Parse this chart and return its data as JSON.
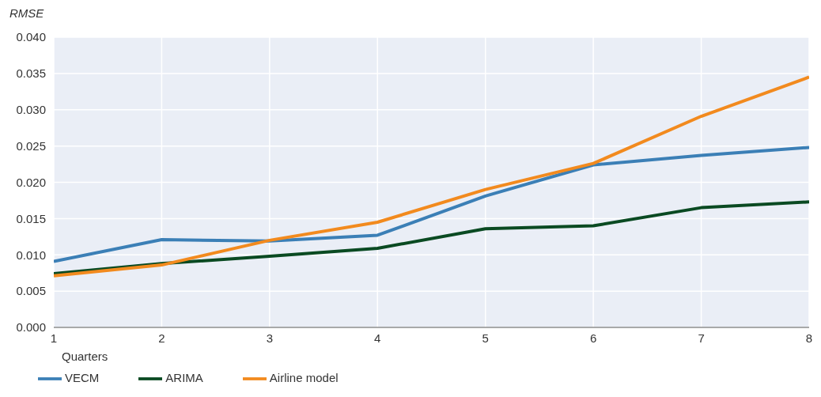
{
  "chart_data": {
    "type": "line",
    "ylabel": "RMSE",
    "xlabel": "Quarters",
    "x": [
      1,
      2,
      3,
      4,
      5,
      6,
      7,
      8
    ],
    "series": [
      {
        "name": "VECM",
        "color": "#3b7fb6",
        "values": [
          0.0091,
          0.0121,
          0.0119,
          0.0127,
          0.0181,
          0.0224,
          0.0237,
          0.0248
        ]
      },
      {
        "name": "ARIMA",
        "color": "#0a4a22",
        "values": [
          0.0074,
          0.0088,
          0.0098,
          0.0109,
          0.0136,
          0.014,
          0.0165,
          0.0173
        ]
      },
      {
        "name": "Airline model",
        "color": "#f28a1e",
        "values": [
          0.0071,
          0.0086,
          0.012,
          0.0145,
          0.019,
          0.0226,
          0.0291,
          0.0345
        ]
      }
    ],
    "xlim": [
      1,
      8
    ],
    "xticks": [
      1,
      2,
      3,
      4,
      5,
      6,
      7,
      8
    ],
    "ylim": [
      0,
      0.04
    ],
    "yticks": [
      {
        "value": 0,
        "label": "0.000"
      },
      {
        "value": 0.005,
        "label": "0.005"
      },
      {
        "value": 0.01,
        "label": "0.010"
      },
      {
        "value": 0.015,
        "label": "0.015"
      },
      {
        "value": 0.02,
        "label": "0.020"
      },
      {
        "value": 0.025,
        "label": "0.025"
      },
      {
        "value": 0.03,
        "label": "0.030"
      },
      {
        "value": 0.035,
        "label": "0.035"
      },
      {
        "value": 0.04,
        "label": "0.040"
      }
    ],
    "grid": true,
    "legend": "bottom left",
    "marker": "none",
    "line_style": "solid"
  }
}
